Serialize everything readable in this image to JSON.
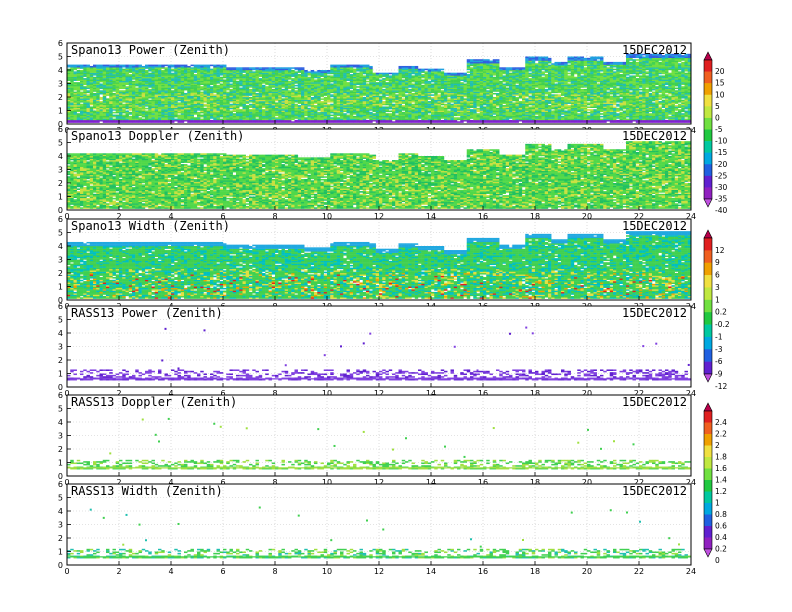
{
  "figure": {
    "date": "15DEC2012"
  },
  "chart_data": [
    {
      "type": "heatmap",
      "title": "Spano13 Power (Zenith)",
      "date": "15DEC2012",
      "xlim": [
        0,
        24
      ],
      "ylim": [
        0,
        6
      ],
      "xticks": [
        "0",
        "2",
        "4",
        "6",
        "8",
        "10",
        "12",
        "14",
        "16",
        "18",
        "20",
        "22",
        "24"
      ],
      "yticks": [
        "0",
        "1",
        "2",
        "3",
        "4",
        "5",
        "6"
      ],
      "colorbar_group": 0,
      "coverage": "full",
      "top_km": [
        [
          0,
          4.4
        ],
        [
          3,
          4.4
        ],
        [
          6,
          4.2
        ],
        [
          9,
          4.0
        ],
        [
          10.1,
          4.4
        ],
        [
          11.6,
          4.3
        ],
        [
          11.8,
          3.9
        ],
        [
          12.7,
          4.3
        ],
        [
          13.4,
          4.1
        ],
        [
          14.4,
          3.8
        ],
        [
          15.3,
          4.7
        ],
        [
          16.6,
          4.2
        ],
        [
          17.5,
          4.9
        ],
        [
          18.5,
          4.6
        ],
        [
          19.2,
          4.9
        ],
        [
          20.6,
          4.6
        ],
        [
          21.4,
          5.1
        ],
        [
          24,
          5.0
        ]
      ],
      "gaps": [
        [
          11.7,
          12.7,
          3.8,
          4.4
        ]
      ],
      "tint": "power"
    },
    {
      "type": "heatmap",
      "title": "Spano13 Doppler (Zenith)",
      "date": "15DEC2012",
      "xlim": [
        0,
        24
      ],
      "ylim": [
        0,
        6
      ],
      "xticks": [
        "0",
        "2",
        "4",
        "6",
        "8",
        "10",
        "12",
        "14",
        "16",
        "18",
        "20",
        "22",
        "24"
      ],
      "yticks": [
        "0",
        "1",
        "2",
        "3",
        "4",
        "5",
        "6"
      ],
      "colorbar_group": 0,
      "coverage": "full",
      "top_km": [
        [
          0,
          4.2
        ],
        [
          3,
          4.2
        ],
        [
          6,
          4.1
        ],
        [
          8.8,
          3.9
        ],
        [
          10.1,
          4.2
        ],
        [
          11.6,
          4.1
        ],
        [
          11.8,
          3.7
        ],
        [
          12.7,
          4.2
        ],
        [
          13.4,
          4.0
        ],
        [
          14.4,
          3.7
        ],
        [
          15.3,
          4.5
        ],
        [
          16.6,
          4.1
        ],
        [
          17.5,
          4.8
        ],
        [
          18.5,
          4.5
        ],
        [
          19.2,
          4.8
        ],
        [
          20.6,
          4.5
        ],
        [
          21.4,
          5.0
        ],
        [
          24,
          4.9
        ]
      ],
      "gaps": [],
      "tint": "doppler"
    },
    {
      "type": "heatmap",
      "title": "Spano13 Width (Zenith)",
      "date": "15DEC2012",
      "xlim": [
        0,
        24
      ],
      "ylim": [
        0,
        6
      ],
      "xticks": [
        "0",
        "2",
        "4",
        "6",
        "8",
        "10",
        "12",
        "14",
        "16",
        "18",
        "20",
        "22",
        "24"
      ],
      "yticks": [
        "0",
        "1",
        "2",
        "3",
        "4",
        "5",
        "6"
      ],
      "colorbar_group": 1,
      "coverage": "full",
      "top_km": [
        [
          0,
          4.3
        ],
        [
          3,
          4.3
        ],
        [
          6,
          4.1
        ],
        [
          9,
          3.9
        ],
        [
          10.1,
          4.3
        ],
        [
          11.6,
          4.2
        ],
        [
          11.8,
          3.8
        ],
        [
          12.7,
          4.2
        ],
        [
          13.4,
          4.0
        ],
        [
          14.4,
          3.7
        ],
        [
          15.3,
          4.6
        ],
        [
          16.6,
          4.1
        ],
        [
          17.5,
          4.8
        ],
        [
          18.5,
          4.5
        ],
        [
          19.2,
          4.8
        ],
        [
          20.6,
          4.5
        ],
        [
          21.4,
          5.0
        ],
        [
          24,
          4.9
        ]
      ],
      "gaps": [],
      "tint": "width"
    },
    {
      "type": "heatmap",
      "title": "RASS13 Power (Zenith)",
      "date": "15DEC2012",
      "xlim": [
        0,
        24
      ],
      "ylim": [
        0,
        6
      ],
      "xticks": [
        "0",
        "2",
        "4",
        "6",
        "8",
        "10",
        "12",
        "14",
        "16",
        "18",
        "20",
        "22",
        "24"
      ],
      "yticks": [
        "0",
        "1",
        "2",
        "3",
        "4",
        "5",
        "6"
      ],
      "colorbar_group": 1,
      "coverage": "sparse",
      "band_km": [
        0.5,
        1.3
      ],
      "tint": "rass_power"
    },
    {
      "type": "heatmap",
      "title": "RASS13 Doppler (Zenith)",
      "date": "15DEC2012",
      "xlim": [
        0,
        24
      ],
      "ylim": [
        0,
        6
      ],
      "xticks": [
        "0",
        "2",
        "4",
        "6",
        "8",
        "10",
        "12",
        "14",
        "16",
        "18",
        "20",
        "22",
        "24"
      ],
      "yticks": [
        "0",
        "1",
        "2",
        "3",
        "4",
        "5",
        "6"
      ],
      "colorbar_group": 2,
      "coverage": "sparse",
      "band_km": [
        0.5,
        1.1
      ],
      "tint": "rass_doppler"
    },
    {
      "type": "heatmap",
      "title": "RASS13 Width (Zenith)",
      "date": "15DEC2012",
      "xlim": [
        0,
        24
      ],
      "ylim": [
        0,
        6
      ],
      "xticks": [
        "0",
        "2",
        "4",
        "6",
        "8",
        "10",
        "12",
        "14",
        "16",
        "18",
        "20",
        "22",
        "24"
      ],
      "yticks": [
        "0",
        "1",
        "2",
        "3",
        "4",
        "5",
        "6"
      ],
      "colorbar_group": 2,
      "coverage": "sparse",
      "band_km": [
        0.5,
        1.2
      ],
      "tint": "rass_width"
    }
  ],
  "colorbars": [
    {
      "labels": [
        "20",
        "15",
        "10",
        "5",
        "0",
        "-5",
        "-10",
        "-15",
        "-20",
        "-25",
        "-30",
        "-35",
        "-40"
      ],
      "colors": [
        "#b8004a",
        "#e02020",
        "#f06020",
        "#f0a000",
        "#f0e040",
        "#c0e840",
        "#70e040",
        "#20c840",
        "#00c8a0",
        "#00a8e0",
        "#2060e0",
        "#6020d0",
        "#9020c0",
        "#c050e0"
      ]
    },
    {
      "labels": [
        "12",
        "9",
        "6",
        "3",
        "1",
        "0.2",
        "-0.2",
        "-1",
        "-3",
        "-6",
        "-9",
        "-12"
      ],
      "colors": [
        "#b8004a",
        "#e02020",
        "#f06020",
        "#f0a000",
        "#f0e040",
        "#c0e840",
        "#70e040",
        "#20c840",
        "#00c8a0",
        "#00a8e0",
        "#2060e0",
        "#6020d0",
        "#c050e0"
      ]
    },
    {
      "labels": [
        "2.4",
        "2.2",
        "2",
        "1.8",
        "1.6",
        "1.4",
        "1.2",
        "1",
        "0.8",
        "0.6",
        "0.4",
        "0.2",
        "0"
      ],
      "colors": [
        "#b8004a",
        "#e02020",
        "#f06020",
        "#f0a000",
        "#f0e040",
        "#c0e840",
        "#70e040",
        "#20c840",
        "#00c8a0",
        "#00a8e0",
        "#2060e0",
        "#6020d0",
        "#9020c0",
        "#c050e0"
      ]
    }
  ]
}
